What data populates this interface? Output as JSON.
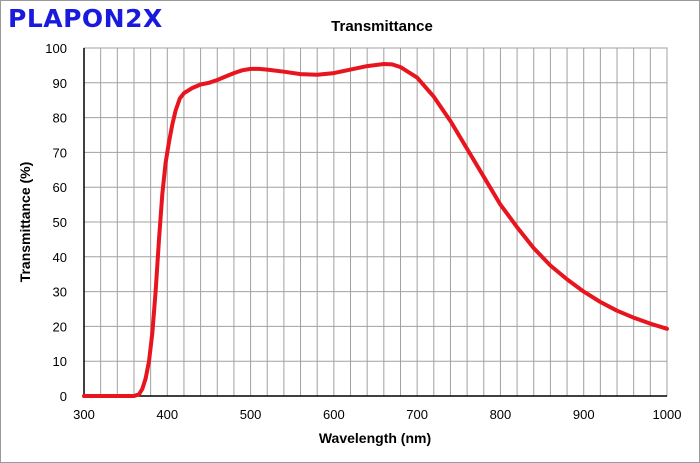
{
  "brand_label": "PLAPON2X",
  "colors": {
    "brand": "#1a1adc",
    "series": "#e8141e",
    "grid": "#a0a0a0",
    "axis": "#000000"
  },
  "chart_data": {
    "type": "line",
    "title": "Transmittance",
    "xlabel": "Wavelength (nm)",
    "ylabel": "Transmittance (%)",
    "xlim": [
      300,
      1000
    ],
    "ylim": [
      0,
      100
    ],
    "xticks": [
      300,
      400,
      500,
      600,
      700,
      800,
      900,
      1000
    ],
    "yticks": [
      0,
      10,
      20,
      30,
      40,
      50,
      60,
      70,
      80,
      90,
      100
    ],
    "x_minor_step": 20,
    "y_minor_step": 10,
    "grid": true,
    "legend": "none",
    "series": [
      {
        "color": "#e8141e",
        "points": [
          [
            300,
            0
          ],
          [
            340,
            0
          ],
          [
            360,
            0
          ],
          [
            366,
            0.5
          ],
          [
            370,
            2
          ],
          [
            374,
            5
          ],
          [
            378,
            10
          ],
          [
            382,
            18
          ],
          [
            386,
            30
          ],
          [
            390,
            45
          ],
          [
            394,
            58
          ],
          [
            398,
            67
          ],
          [
            402,
            73
          ],
          [
            406,
            78
          ],
          [
            410,
            82
          ],
          [
            415,
            85.5
          ],
          [
            420,
            87
          ],
          [
            430,
            88.5
          ],
          [
            440,
            89.5
          ],
          [
            450,
            90
          ],
          [
            460,
            90.8
          ],
          [
            470,
            91.8
          ],
          [
            480,
            92.8
          ],
          [
            490,
            93.6
          ],
          [
            500,
            94
          ],
          [
            510,
            94
          ],
          [
            520,
            93.8
          ],
          [
            540,
            93.2
          ],
          [
            560,
            92.5
          ],
          [
            580,
            92.3
          ],
          [
            600,
            92.8
          ],
          [
            620,
            93.8
          ],
          [
            640,
            94.8
          ],
          [
            660,
            95.4
          ],
          [
            670,
            95.3
          ],
          [
            680,
            94.5
          ],
          [
            700,
            91.5
          ],
          [
            720,
            86
          ],
          [
            740,
            79
          ],
          [
            760,
            71
          ],
          [
            780,
            63
          ],
          [
            800,
            55
          ],
          [
            820,
            48.5
          ],
          [
            840,
            42.5
          ],
          [
            860,
            37.5
          ],
          [
            880,
            33.5
          ],
          [
            900,
            30
          ],
          [
            920,
            27
          ],
          [
            940,
            24.5
          ],
          [
            960,
            22.5
          ],
          [
            980,
            20.8
          ],
          [
            1000,
            19.3
          ]
        ]
      }
    ]
  }
}
